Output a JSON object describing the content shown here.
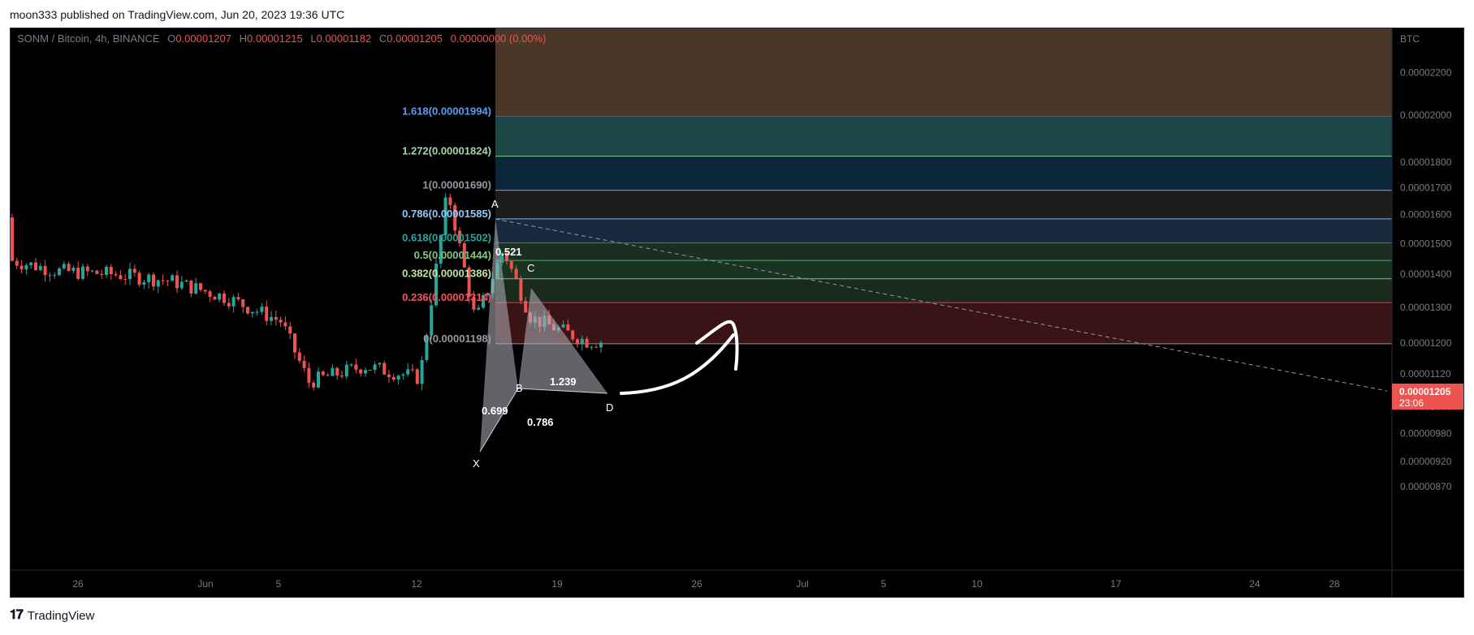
{
  "publisher": "moon333 published on TradingView.com, Jun 20, 2023 19:36 UTC",
  "footer": {
    "brand": "TradingView",
    "logo_icon": "tradingview-logo-icon"
  },
  "header": {
    "symbol": "SONM / Bitcoin, 4h, BINANCE",
    "o_label": "O",
    "o": "0.00001207",
    "h_label": "H",
    "h": "0.00001215",
    "l_label": "L",
    "l": "0.00001182",
    "c_label": "C",
    "c": "0.00001205",
    "change": "0.00000000 (0.00%)"
  },
  "colors": {
    "background": "#000000",
    "up": "#26a69a",
    "down": "#ef5350",
    "price_tag": "#ef5350",
    "fib_0": "#9598a1",
    "fib_0236": "#f23645",
    "fib_0382": "#81c784",
    "fib_05": "#4caf50",
    "fib_0618": "#089981",
    "fib_0786": "#64b5f6",
    "fib_1": "#9598a1",
    "fib_1272": "#81c784",
    "fib_1618": "#2962ff",
    "harmonic_fill": "#b2b5be"
  },
  "chart_data": {
    "type": "candlestick",
    "title": "SONM / Bitcoin, 4h, BINANCE",
    "y_unit": "BTC",
    "y_scale": "log",
    "y_ticks": [
      "0.00002200",
      "0.00002000",
      "0.00001800",
      "0.00001700",
      "0.00001600",
      "0.00001500",
      "0.00001400",
      "0.00001300",
      "0.00001200",
      "0.00001120",
      "0.00001040",
      "0.00000980",
      "0.00000920",
      "0.00000870"
    ],
    "x_ticks": [
      "26",
      "Jun",
      "5",
      "12",
      "19",
      "26",
      "Jul",
      "5",
      "10",
      "17",
      "24",
      "28"
    ],
    "last_price": "0.00001205",
    "countdown": "23:06",
    "fib_levels": [
      {
        "ratio": "1.618",
        "price": "0.00001994",
        "label": "1.618(0.00001994)"
      },
      {
        "ratio": "1.272",
        "price": "0.00001824",
        "label": "1.272(0.00001824)"
      },
      {
        "ratio": "1",
        "price": "0.00001690",
        "label": "1(0.00001690)"
      },
      {
        "ratio": "0.786",
        "price": "0.00001585",
        "label": "0.786(0.00001585)"
      },
      {
        "ratio": "0.618",
        "price": "0.00001502",
        "label": "0.618(0.00001502)"
      },
      {
        "ratio": "0.5",
        "price": "0.00001444",
        "label": "0.5(0.00001444)"
      },
      {
        "ratio": "0.382",
        "price": "0.00001386",
        "label": "0.382(0.00001386)"
      },
      {
        "ratio": "0.236",
        "price": "0.00001314",
        "label": "0.236(0.00001314)"
      },
      {
        "ratio": "0",
        "price": "0.00001198",
        "label": "0(0.00001198)"
      }
    ],
    "harmonic_pattern": {
      "points": [
        "X",
        "A",
        "B",
        "C",
        "D"
      ],
      "ratios": [
        "0.521",
        "0.699",
        "0.786",
        "1.239"
      ]
    },
    "trend": [
      {
        "date": "May 22",
        "close": 1.59e-05
      },
      {
        "date": "May 26",
        "close": 1.52e-05
      },
      {
        "date": "May 29",
        "close": 1.47e-05
      },
      {
        "date": "Jun 1",
        "close": 1.41e-05
      },
      {
        "date": "Jun 3",
        "close": 1.4e-05
      },
      {
        "date": "Jun 5",
        "close": 1.38e-05
      },
      {
        "date": "Jun 7",
        "close": 1.33e-05
      },
      {
        "date": "Jun 9",
        "close": 1.26e-05
      },
      {
        "date": "Jun 10",
        "close": 1.1e-05
      },
      {
        "date": "Jun 12",
        "close": 1.14e-05
      },
      {
        "date": "Jun 14",
        "close": 1.11e-05
      },
      {
        "date": "Jun 15",
        "close": 1.69e-05
      },
      {
        "date": "Jun 16",
        "close": 1.26e-05
      },
      {
        "date": "Jun 17",
        "close": 1.48e-05
      },
      {
        "date": "Jun 18",
        "close": 1.27e-05
      },
      {
        "date": "Jun 20",
        "close": 1.205e-05
      }
    ]
  }
}
